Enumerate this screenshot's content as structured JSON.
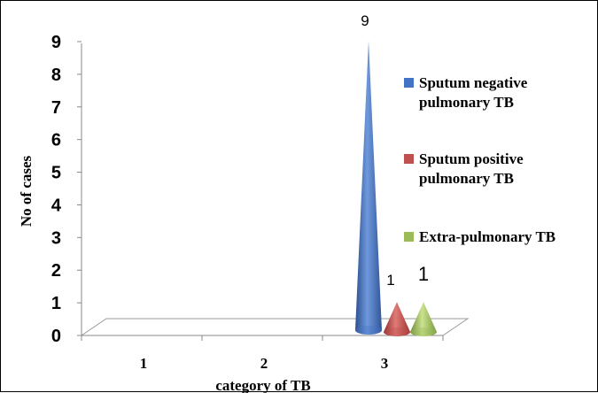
{
  "chart_data": {
    "type": "bar",
    "style": "3d-cone",
    "categories": [
      "1",
      "2",
      "3"
    ],
    "series": [
      {
        "name": "Sputum negative pulmonary TB",
        "values": [
          0,
          0,
          9
        ],
        "color": "#4472C4"
      },
      {
        "name": "Sputum positive pulmonary TB",
        "values": [
          0,
          0,
          1
        ],
        "color": "#C0504D"
      },
      {
        "name": "Extra-pulmonary TB",
        "values": [
          0,
          0,
          1
        ],
        "color": "#9BBB59"
      }
    ],
    "data_labels": [
      "9",
      "1",
      "1"
    ],
    "legend_lines": [
      [
        "Sputum negative",
        "pulmonary TB"
      ],
      [
        "Sputum positive",
        "pulmonary TB"
      ],
      [
        "Extra-pulmonary TB"
      ]
    ],
    "xlabel": "category of TB",
    "ylabel": "No of cases",
    "yticks": [
      "0",
      "1",
      "2",
      "3",
      "4",
      "5",
      "6",
      "7",
      "8",
      "9"
    ],
    "ylim": [
      0,
      9
    ],
    "grid": false,
    "legend_position": "right"
  }
}
